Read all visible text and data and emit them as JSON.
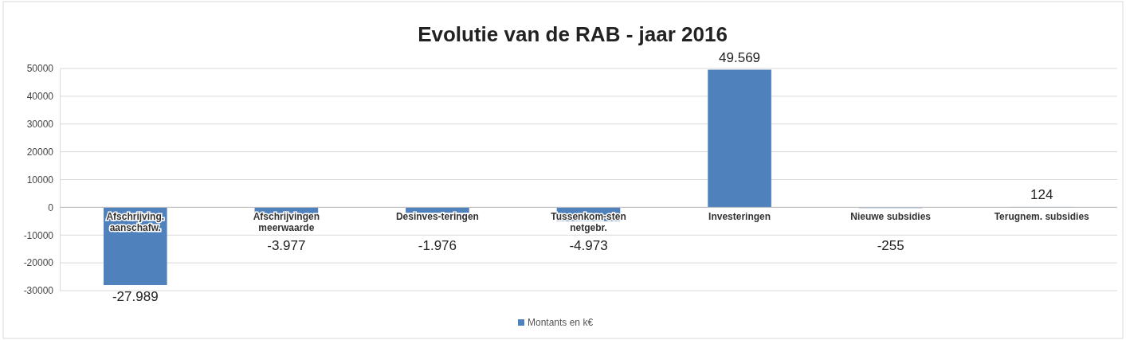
{
  "chart_data": {
    "type": "bar",
    "title": "Evolutie van de RAB - jaar 2016",
    "categories": [
      "Afschrijving. aanschafw.",
      "Afschrijvingen meerwaarde",
      "Desinves-teringen",
      "Tussenkom-sten netgebr.",
      "Investeringen",
      "Nieuwe subsidies",
      "Terugnem. subsidies"
    ],
    "series": [
      {
        "name": "Montants en k€",
        "color": "#4f81bd",
        "values": [
          -27989,
          -3977,
          -1976,
          -4973,
          49569,
          -255,
          124
        ],
        "value_labels": [
          "-27.989",
          "-3.977",
          "-1.976",
          "-4.973",
          "49.569",
          "-255",
          "124"
        ]
      }
    ],
    "ylim": [
      -30000,
      50000
    ],
    "yticks": [
      -30000,
      -20000,
      -10000,
      0,
      10000,
      20000,
      30000,
      40000,
      50000
    ],
    "grid": "y",
    "legend": "bottom"
  }
}
